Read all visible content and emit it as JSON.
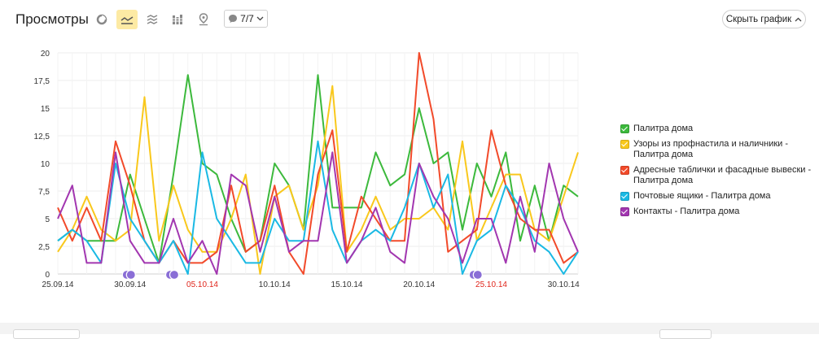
{
  "header": {
    "title": "Просмотры",
    "annotations_label": "7/7",
    "hide_chart_label": "Скрыть график"
  },
  "toolbar": {
    "icons": [
      "pie-chart-icon",
      "line-chart-icon",
      "area-chart-icon",
      "bar-chart-icon",
      "map-pin-icon"
    ],
    "active": "line-chart-icon",
    "active_color": "#fdeaa4"
  },
  "chart_data": {
    "type": "line",
    "x": [
      "25.09.14",
      "26.09.14",
      "27.09.14",
      "28.09.14",
      "29.09.14",
      "30.09.14",
      "01.10.14",
      "02.10.14",
      "03.10.14",
      "04.10.14",
      "05.10.14",
      "06.10.14",
      "07.10.14",
      "08.10.14",
      "09.10.14",
      "10.10.14",
      "11.10.14",
      "12.10.14",
      "13.10.14",
      "14.10.14",
      "15.10.14",
      "16.10.14",
      "17.10.14",
      "18.10.14",
      "19.10.14",
      "20.10.14",
      "21.10.14",
      "22.10.14",
      "23.10.14",
      "24.10.14",
      "25.10.14",
      "26.10.14",
      "27.10.14",
      "28.10.14",
      "29.10.14",
      "30.10.14",
      "31.10.14"
    ],
    "x_ticks": [
      {
        "label": "25.09.14",
        "index": 0,
        "color": "#333333"
      },
      {
        "label": "30.09.14",
        "index": 5,
        "color": "#333333"
      },
      {
        "label": "05.10.14",
        "index": 10,
        "color": "#e0251b"
      },
      {
        "label": "10.10.14",
        "index": 15,
        "color": "#333333"
      },
      {
        "label": "15.10.14",
        "index": 20,
        "color": "#333333"
      },
      {
        "label": "20.10.14",
        "index": 25,
        "color": "#333333"
      },
      {
        "label": "25.10.14",
        "index": 30,
        "color": "#e0251b"
      },
      {
        "label": "30.10.14",
        "index": 35,
        "color": "#333333"
      }
    ],
    "y_ticks": [
      "0",
      "2,5",
      "5",
      "7,5",
      "10",
      "12,5",
      "15",
      "17,5",
      "20"
    ],
    "ylim": [
      0,
      20
    ],
    "grid": true,
    "legend_position": "right",
    "annotation_markers": [
      5,
      8,
      29
    ],
    "series": [
      {
        "name": "Палитра дома",
        "color": "#3cb93c",
        "values": [
          3,
          4,
          3,
          3,
          3,
          9,
          5,
          1,
          9,
          18,
          10,
          9,
          5,
          2,
          3,
          10,
          8,
          4,
          18,
          6,
          6,
          6,
          11,
          8,
          9,
          15,
          10,
          11,
          4,
          10,
          7,
          11,
          3,
          8,
          3,
          8,
          7
        ]
      },
      {
        "name": "Узоры из профнастила и наличники - Палитра дома",
        "color": "#f9c81c",
        "values": [
          2,
          4,
          7,
          4,
          3,
          4,
          16,
          3,
          8,
          4,
          2,
          2,
          5,
          9,
          0,
          7,
          8,
          4,
          8,
          17,
          2,
          4,
          7,
          4,
          5,
          5,
          6,
          4,
          12,
          3,
          6,
          9,
          9,
          4,
          3,
          7,
          11
        ]
      },
      {
        "name": "Адресные таблички и фасадные вывески - Палитра дома",
        "color": "#f24a2a",
        "values": [
          6,
          3,
          6,
          3,
          12,
          8,
          3,
          1,
          3,
          1,
          1,
          2,
          8,
          2,
          3,
          8,
          2,
          0,
          9,
          13,
          2,
          7,
          5,
          3,
          3,
          20,
          14,
          2,
          3,
          4,
          13,
          8,
          5,
          4,
          4,
          1,
          2
        ]
      },
      {
        "name": "Почтовые ящики - Палитра дома",
        "color": "#1ab9e4",
        "values": [
          3,
          4,
          3,
          1,
          10,
          5,
          3,
          1,
          3,
          0,
          11,
          5,
          3,
          1,
          1,
          5,
          3,
          3,
          12,
          4,
          1,
          3,
          4,
          3,
          6,
          10,
          6,
          9,
          0,
          3,
          4,
          8,
          6,
          3,
          2,
          0,
          2
        ]
      },
      {
        "name": "Контакты - Палитра дома",
        "color": "#a236b0",
        "values": [
          5,
          8,
          1,
          1,
          11,
          3,
          1,
          1,
          5,
          1,
          3,
          0,
          9,
          8,
          2,
          7,
          2,
          3,
          3,
          11,
          1,
          3,
          6,
          2,
          1,
          10,
          7,
          5,
          1,
          5,
          5,
          1,
          7,
          2,
          10,
          5,
          2
        ]
      }
    ]
  }
}
